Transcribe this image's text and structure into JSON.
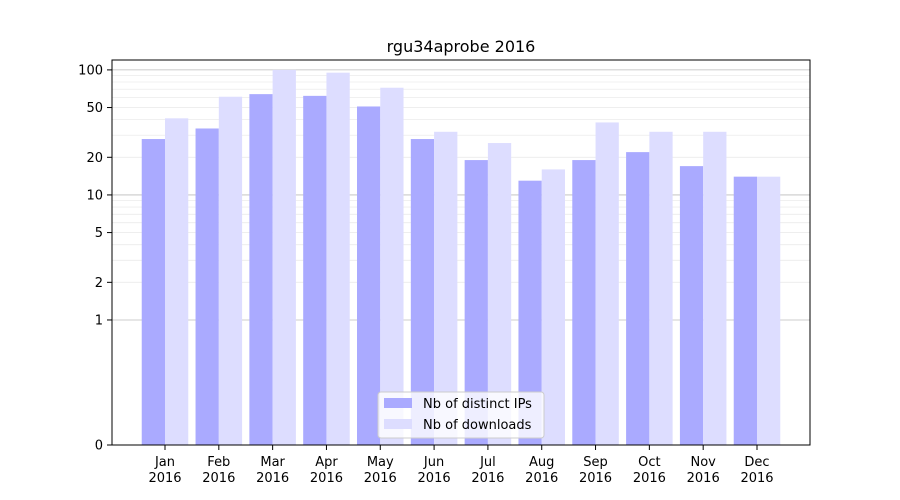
{
  "chart_data": {
    "type": "bar",
    "title": "rgu34aprobe 2016",
    "xlabel": "",
    "ylabel": "",
    "y_scale": "symlog",
    "ylim": [
      0,
      120
    ],
    "yticks": [
      0,
      1,
      2,
      5,
      10,
      20,
      50,
      100
    ],
    "grid": true,
    "legend_position": "lower-center",
    "categories": [
      [
        "Jan",
        "2016"
      ],
      [
        "Feb",
        "2016"
      ],
      [
        "Mar",
        "2016"
      ],
      [
        "Apr",
        "2016"
      ],
      [
        "May",
        "2016"
      ],
      [
        "Jun",
        "2016"
      ],
      [
        "Jul",
        "2016"
      ],
      [
        "Aug",
        "2016"
      ],
      [
        "Sep",
        "2016"
      ],
      [
        "Oct",
        "2016"
      ],
      [
        "Nov",
        "2016"
      ],
      [
        "Dec",
        "2016"
      ]
    ],
    "series": [
      {
        "name": "Nb of distinct IPs",
        "color": "#aaaaff",
        "values": [
          28,
          34,
          64,
          62,
          51,
          28,
          19,
          13,
          19,
          22,
          17,
          14
        ]
      },
      {
        "name": "Nb of downloads",
        "color": "#ddddff",
        "values": [
          41,
          61,
          100,
          95,
          72,
          32,
          26,
          16,
          38,
          32,
          32,
          14
        ]
      }
    ]
  }
}
